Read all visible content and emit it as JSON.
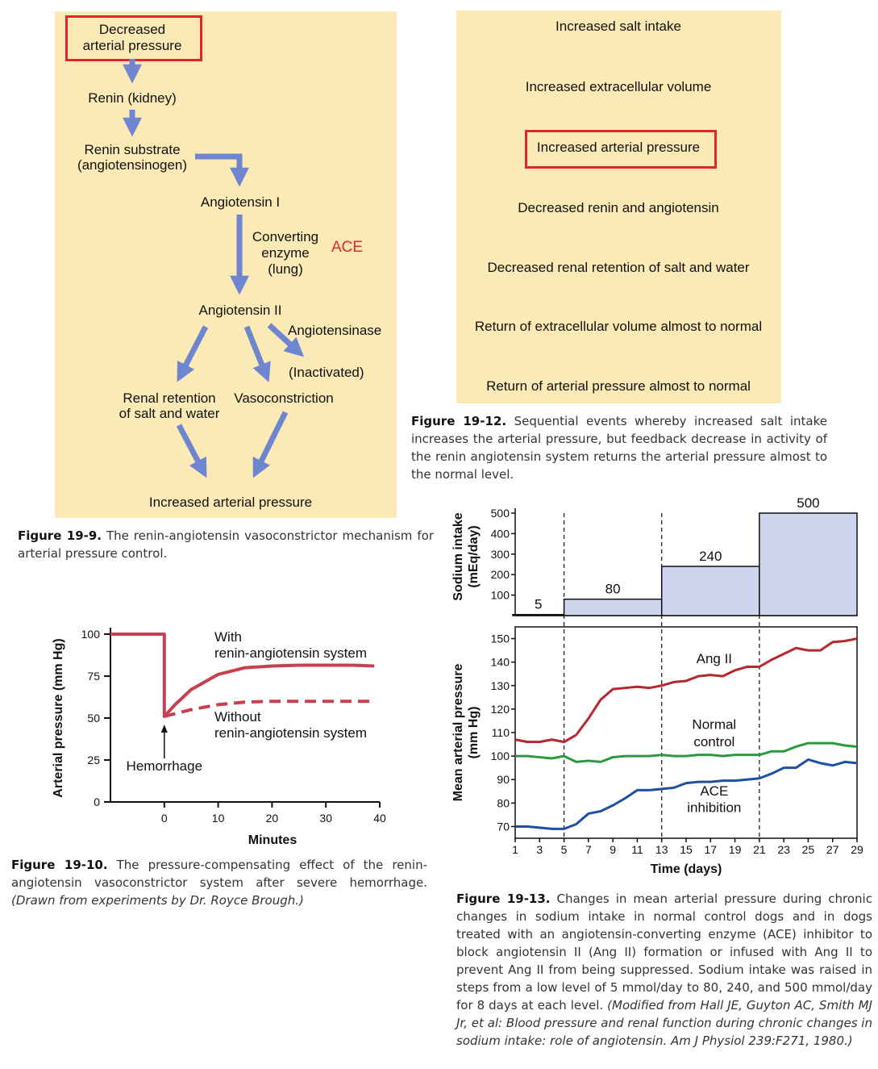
{
  "fig9": {
    "boxed_top_line1": "Decreased",
    "boxed_top_line2": "arterial pressure",
    "renin": "Renin (kidney)",
    "substrate_line1": "Renin substrate",
    "substrate_line2": "(angiotensinogen)",
    "ang1": "Angiotensin I",
    "converting_line1": "Converting",
    "converting_line2": "enzyme",
    "converting_line3": "(lung)",
    "ace": "ACE",
    "ang2": "Angiotensin II",
    "angiotensinase": "Angiotensinase",
    "inactivated": "(Inactivated)",
    "renal_line1": "Renal retention",
    "renal_line2": "of salt and water",
    "vasoconstriction": "Vasoconstriction",
    "increased": "Increased arterial pressure",
    "caption_label": "Figure 19-9.",
    "caption_text": "The renin-angiotensin vasoconstrictor mechanism for arterial pressure control.",
    "arrow_color": "#6e85cf",
    "box_color": "#e1262d"
  },
  "fig12": {
    "steps": [
      "Increased salt intake",
      "Increased extracellular volume",
      "Increased arterial pressure",
      "Decreased renin and angiotensin",
      "Decreased renal retention of salt and water",
      "Return of extracellular volume almost to normal",
      "Return of arterial pressure almost to normal"
    ],
    "caption_label": "Figure 19-12.",
    "caption_text": "Sequential events whereby increased salt intake increases the arterial pressure, but feedback decrease in activity of the renin angiotensin system returns the arterial pressure almost to the normal level."
  },
  "fig10": {
    "caption_label": "Figure 19-10.",
    "caption_text": "The pressure-compensating effect of the renin-angiotensin vasoconstrictor system after severe hemorrhage.",
    "caption_italic": "(Drawn from experiments by Dr. Royce Brough.)"
  },
  "fig13": {
    "caption_label": "Figure 19-13.",
    "caption_text": "Changes in mean arterial pressure during chronic changes in sodium intake in normal control dogs and in dogs treated with an angiotensin-converting enzyme (ACE) inhibitor to block angiotensin II (Ang II) formation or infused with Ang II to prevent Ang II from being suppressed. Sodium intake was raised in steps from a low level of 5 mmol/day to 80, 240, and 500 mmol/day for 8 days at each level.",
    "caption_italic": "(Modified from Hall JE, Guyton AC, Smith MJ Jr, et al: Blood pressure and renal function during chronic changes in sodium intake: role of angiotensin. Am J Physiol 239:F271, 1980.)"
  },
  "chart_data": [
    {
      "type": "line",
      "xlabel": "Minutes",
      "ylabel": "Arterial pressure (mm Hg)",
      "xlim": [
        -10,
        40
      ],
      "ylim": [
        0,
        100
      ],
      "xticks": [
        0,
        10,
        20,
        30,
        40
      ],
      "yticks": [
        0,
        25,
        50,
        75,
        100
      ],
      "series": [
        {
          "name": "With renin-angiotensin system",
          "color": "#c8404f",
          "style": "solid",
          "x": [
            -10,
            0,
            0,
            2,
            5,
            10,
            15,
            20,
            25,
            30,
            35,
            39
          ],
          "y": [
            100,
            100,
            51,
            58,
            67,
            76,
            80,
            81,
            81.5,
            81.5,
            81.5,
            81
          ]
        },
        {
          "name": "Without renin-angiotensin system",
          "color": "#c8404f",
          "style": "dashed",
          "x": [
            0,
            5,
            10,
            15,
            20,
            25,
            30,
            35,
            39
          ],
          "y": [
            51,
            55,
            58,
            59.5,
            60,
            60,
            60,
            60,
            60
          ]
        }
      ],
      "annotations": [
        {
          "text": "Hemorrhage",
          "x": 0,
          "y": 51
        },
        {
          "text": "With",
          "x": 9,
          "y": 98
        },
        {
          "text": "renin-angiotensin system",
          "x": 9,
          "y": 88
        },
        {
          "text": "Without",
          "x": 9,
          "y": 50
        },
        {
          "text": "renin-angiotensin system",
          "x": 9,
          "y": 41
        }
      ]
    },
    {
      "type": "bar",
      "ylabel_line1": "Sodium intake",
      "ylabel_line2": "(mEq/day)",
      "ylim": [
        0,
        500
      ],
      "yticks": [
        100,
        200,
        300,
        400,
        500
      ],
      "steps": [
        {
          "from_day": 0.8,
          "to_day": 5,
          "value": 5,
          "label": "5"
        },
        {
          "from_day": 5,
          "to_day": 13,
          "value": 80,
          "label": "80"
        },
        {
          "from_day": 13,
          "to_day": 21,
          "value": 240,
          "label": "240"
        },
        {
          "from_day": 21,
          "to_day": 29,
          "value": 500,
          "label": "500"
        }
      ],
      "fill": "#cfd5ef"
    },
    {
      "type": "line",
      "xlabel": "Time (days)",
      "ylabel_line1": "Mean arterial pressure",
      "ylabel_line2": "(mm Hg)",
      "xlim": [
        1,
        29
      ],
      "ylim": [
        65,
        155
      ],
      "xticks": [
        1,
        3,
        5,
        7,
        9,
        11,
        13,
        15,
        17,
        19,
        21,
        23,
        25,
        27,
        29
      ],
      "yticks": [
        70,
        80,
        90,
        100,
        110,
        120,
        130,
        140,
        150
      ],
      "dividers": [
        5,
        13,
        21
      ],
      "series": [
        {
          "name": "Ang II",
          "color": "#b8262e",
          "x": [
            1,
            2,
            3,
            4,
            5,
            6,
            7,
            8,
            9,
            10,
            11,
            12,
            13,
            14,
            15,
            16,
            17,
            18,
            19,
            20,
            21,
            22,
            23,
            24,
            25,
            26,
            27,
            28,
            29
          ],
          "y": [
            107,
            106,
            106,
            107,
            106,
            109,
            116,
            124,
            128.5,
            129,
            129.5,
            129,
            130,
            131.5,
            132,
            134,
            134.5,
            134,
            136.5,
            138,
            138,
            141,
            143.5,
            146,
            145,
            145,
            148.5,
            149,
            150
          ]
        },
        {
          "name": "Normal control",
          "label_line1": "Normal",
          "label_line2": "control",
          "color": "#2a9a3e",
          "x": [
            1,
            2,
            3,
            4,
            5,
            6,
            7,
            8,
            9,
            10,
            11,
            12,
            13,
            14,
            15,
            16,
            17,
            18,
            19,
            20,
            21,
            22,
            23,
            24,
            25,
            26,
            27,
            28,
            29
          ],
          "y": [
            100,
            100,
            99.5,
            99,
            100,
            97.5,
            98,
            97.5,
            99.5,
            100,
            100,
            100,
            100.5,
            100,
            100,
            100.5,
            100.5,
            100,
            100.5,
            100.5,
            100.5,
            102,
            102,
            104,
            105.5,
            105.5,
            105.5,
            104.5,
            104
          ]
        },
        {
          "name": "ACE inhibition",
          "label_line1": "ACE",
          "label_line2": "inhibition",
          "color": "#1f4fa0",
          "x": [
            1,
            2,
            3,
            4,
            5,
            6,
            7,
            8,
            9,
            10,
            11,
            12,
            13,
            14,
            15,
            16,
            17,
            18,
            19,
            20,
            21,
            22,
            23,
            24,
            25,
            26,
            27,
            28,
            29
          ],
          "y": [
            70,
            70,
            69.5,
            69,
            69,
            71,
            75.5,
            76.5,
            79,
            82,
            85.5,
            85.5,
            86,
            86.5,
            88.5,
            89,
            89,
            89.5,
            89.5,
            90,
            90.5,
            92.5,
            95,
            95,
            98.5,
            97,
            96,
            97.5,
            97
          ]
        }
      ]
    }
  ]
}
